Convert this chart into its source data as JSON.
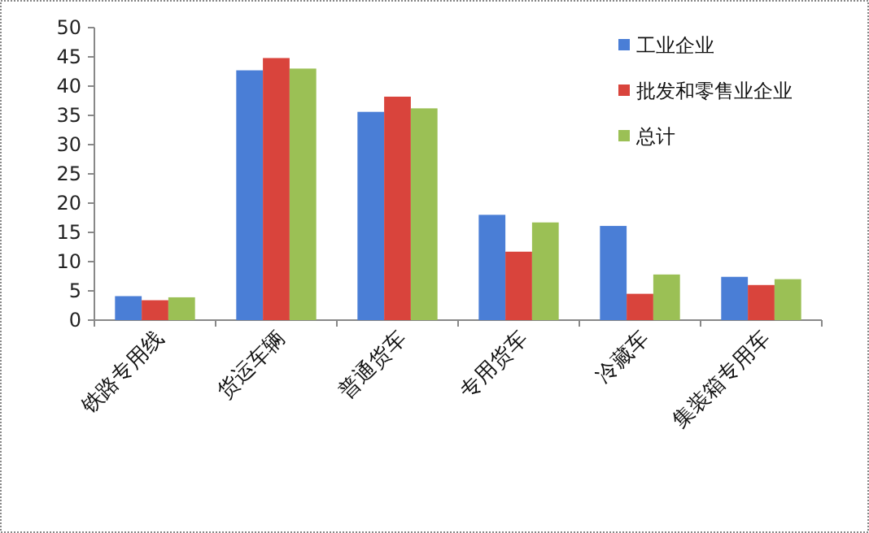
{
  "chart_data": {
    "type": "bar",
    "categories": [
      "铁路专用线",
      "货运车辆",
      "普通货车",
      "专用货车",
      "冷藏车",
      "集装箱专用车"
    ],
    "series": [
      {
        "name": "工业企业",
        "color": "#4a7ed6",
        "values": [
          4.1,
          42.7,
          35.6,
          18.0,
          16.1,
          7.4
        ]
      },
      {
        "name": "批发和零售业企业",
        "color": "#d9443c",
        "values": [
          3.4,
          44.8,
          38.2,
          11.7,
          4.5,
          6.0
        ]
      },
      {
        "name": "总计",
        "color": "#9bc055",
        "values": [
          3.9,
          43.0,
          36.2,
          16.7,
          7.8,
          7.0
        ]
      }
    ],
    "ylim": [
      0,
      50
    ],
    "yticks": [
      0,
      5,
      10,
      15,
      20,
      25,
      30,
      35,
      40,
      45,
      50
    ],
    "legend": "top right"
  }
}
